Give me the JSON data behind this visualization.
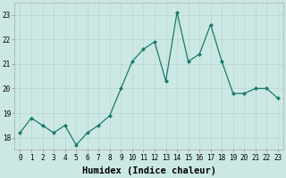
{
  "x": [
    0,
    1,
    2,
    3,
    4,
    5,
    6,
    7,
    8,
    9,
    10,
    11,
    12,
    13,
    14,
    15,
    16,
    17,
    18,
    19,
    20,
    21,
    22,
    23
  ],
  "y": [
    18.2,
    18.8,
    18.5,
    18.2,
    18.5,
    17.7,
    18.2,
    18.5,
    18.9,
    20.0,
    21.1,
    21.6,
    21.9,
    20.3,
    23.1,
    21.1,
    21.4,
    22.6,
    21.1,
    19.8,
    19.8,
    20.0,
    20.0,
    19.6
  ],
  "line_color": "#1a7a6a",
  "marker": "D",
  "marker_size": 2.0,
  "bg_color": "#cce8e4",
  "grid_color_major": "#b8d4d0",
  "grid_color_minor": "#d4e8e4",
  "xlabel": "Humidex (Indice chaleur)",
  "ylim": [
    17.5,
    23.5
  ],
  "xlim": [
    -0.5,
    23.5
  ],
  "yticks": [
    18,
    19,
    20,
    21,
    22,
    23
  ],
  "xticks": [
    0,
    1,
    2,
    3,
    4,
    5,
    6,
    7,
    8,
    9,
    10,
    11,
    12,
    13,
    14,
    15,
    16,
    17,
    18,
    19,
    20,
    21,
    22,
    23
  ],
  "xtick_labels": [
    "0",
    "1",
    "2",
    "3",
    "4",
    "5",
    "6",
    "7",
    "8",
    "9",
    "10",
    "11",
    "12",
    "13",
    "14",
    "15",
    "16",
    "17",
    "18",
    "19",
    "20",
    "21",
    "22",
    "23"
  ],
  "tick_fontsize": 5.5,
  "xlabel_fontsize": 7.5,
  "linewidth": 0.9
}
